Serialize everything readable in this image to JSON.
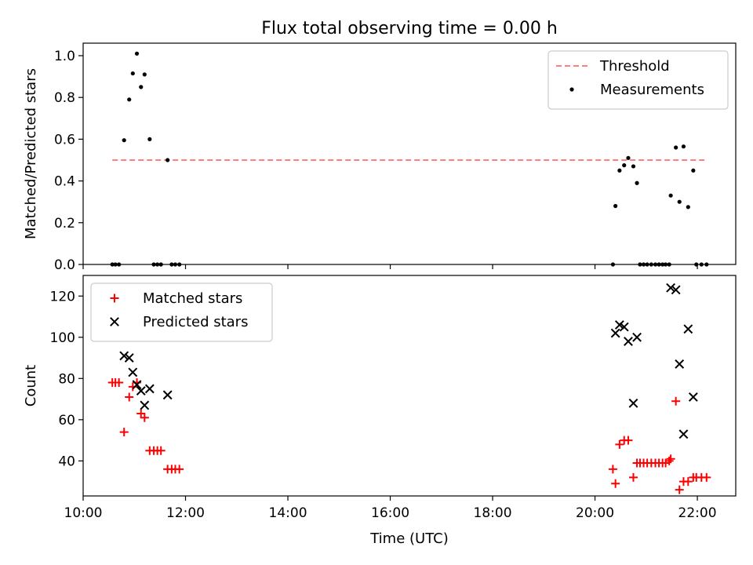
{
  "chart_data": {
    "title": "Flux total observing time = 0.00 h",
    "xlabel": "Time (UTC)",
    "x_unit": "hours UTC",
    "xlim": [
      10.0,
      22.75
    ],
    "xticks": [
      10,
      12,
      14,
      16,
      18,
      20,
      22
    ],
    "xtick_labels": [
      "10:00",
      "12:00",
      "14:00",
      "16:00",
      "18:00",
      "20:00",
      "22:00"
    ],
    "panels": [
      {
        "type": "scatter",
        "ylabel": "Matched/Predicted stars",
        "ylim": [
          0,
          1.06
        ],
        "yticks": [
          0.0,
          0.2,
          0.4,
          0.6,
          0.8,
          1.0
        ],
        "ytick_labels": [
          "0.0",
          "0.2",
          "0.4",
          "0.6",
          "0.8",
          "1.0"
        ],
        "legend_position": "upper right",
        "threshold": {
          "name": "Threshold",
          "y": 0.5,
          "x_range": [
            10.57,
            22.2
          ],
          "color": "#ff7f7f",
          "style": "dashed"
        },
        "series": [
          {
            "name": "Measurements",
            "marker": "dot",
            "color": "#000000",
            "points": [
              [
                10.57,
                0.0
              ],
              [
                10.63,
                0.0
              ],
              [
                10.7,
                0.0
              ],
              [
                10.8,
                0.595
              ],
              [
                10.9,
                0.79
              ],
              [
                10.97,
                0.915
              ],
              [
                11.05,
                1.01
              ],
              [
                11.13,
                0.85
              ],
              [
                11.2,
                0.91
              ],
              [
                11.3,
                0.6
              ],
              [
                11.38,
                0.0
              ],
              [
                11.45,
                0.0
              ],
              [
                11.52,
                0.0
              ],
              [
                11.65,
                0.5
              ],
              [
                11.73,
                0.0
              ],
              [
                11.8,
                0.0
              ],
              [
                11.88,
                0.0
              ],
              [
                20.35,
                0.0
              ],
              [
                20.4,
                0.28
              ],
              [
                20.48,
                0.45
              ],
              [
                20.57,
                0.475
              ],
              [
                20.65,
                0.51
              ],
              [
                20.75,
                0.47
              ],
              [
                20.82,
                0.39
              ],
              [
                20.88,
                0.0
              ],
              [
                20.95,
                0.0
              ],
              [
                21.02,
                0.0
              ],
              [
                21.1,
                0.0
              ],
              [
                21.18,
                0.0
              ],
              [
                21.25,
                0.0
              ],
              [
                21.32,
                0.0
              ],
              [
                21.38,
                0.0
              ],
              [
                21.45,
                0.0
              ],
              [
                21.48,
                0.33
              ],
              [
                21.58,
                0.56
              ],
              [
                21.65,
                0.3
              ],
              [
                21.73,
                0.565
              ],
              [
                21.82,
                0.275
              ],
              [
                21.92,
                0.45
              ],
              [
                21.98,
                0.0
              ],
              [
                22.08,
                0.0
              ],
              [
                22.18,
                0.0
              ]
            ]
          }
        ]
      },
      {
        "type": "scatter",
        "ylabel": "Count",
        "ylim": [
          23,
          130
        ],
        "yticks": [
          40,
          60,
          80,
          100,
          120
        ],
        "ytick_labels": [
          "40",
          "60",
          "80",
          "100",
          "120"
        ],
        "legend_position": "upper left",
        "series": [
          {
            "name": "Matched stars",
            "marker": "plus",
            "color": "#ff0000",
            "points": [
              [
                10.57,
                78
              ],
              [
                10.63,
                78
              ],
              [
                10.7,
                78
              ],
              [
                10.8,
                54
              ],
              [
                10.9,
                71
              ],
              [
                10.97,
                76
              ],
              [
                11.05,
                78
              ],
              [
                11.13,
                63
              ],
              [
                11.2,
                61
              ],
              [
                11.3,
                45
              ],
              [
                11.38,
                45
              ],
              [
                11.45,
                45
              ],
              [
                11.52,
                45
              ],
              [
                11.65,
                36
              ],
              [
                11.73,
                36
              ],
              [
                11.8,
                36
              ],
              [
                11.88,
                36
              ],
              [
                20.35,
                36
              ],
              [
                20.4,
                29
              ],
              [
                20.48,
                48
              ],
              [
                20.57,
                50
              ],
              [
                20.65,
                50
              ],
              [
                20.75,
                32
              ],
              [
                20.82,
                39
              ],
              [
                20.88,
                39
              ],
              [
                20.95,
                39
              ],
              [
                21.02,
                39
              ],
              [
                21.1,
                39
              ],
              [
                21.18,
                39
              ],
              [
                21.25,
                39
              ],
              [
                21.32,
                39
              ],
              [
                21.38,
                39
              ],
              [
                21.45,
                40
              ],
              [
                21.48,
                41
              ],
              [
                21.58,
                69
              ],
              [
                21.65,
                26
              ],
              [
                21.73,
                30
              ],
              [
                21.82,
                30
              ],
              [
                21.92,
                32
              ],
              [
                21.98,
                32
              ],
              [
                22.08,
                32
              ],
              [
                22.18,
                32
              ]
            ]
          },
          {
            "name": "Predicted stars",
            "marker": "x",
            "color": "#000000",
            "points": [
              [
                10.8,
                91
              ],
              [
                10.9,
                90
              ],
              [
                10.97,
                83
              ],
              [
                11.05,
                77
              ],
              [
                11.13,
                74
              ],
              [
                11.2,
                67
              ],
              [
                11.3,
                75
              ],
              [
                11.65,
                72
              ],
              [
                20.4,
                102
              ],
              [
                20.48,
                106
              ],
              [
                20.57,
                105
              ],
              [
                20.65,
                98
              ],
              [
                20.75,
                68
              ],
              [
                20.82,
                100
              ],
              [
                21.48,
                124
              ],
              [
                21.58,
                123
              ],
              [
                21.65,
                87
              ],
              [
                21.73,
                53
              ],
              [
                21.82,
                104
              ],
              [
                21.92,
                71
              ]
            ]
          }
        ]
      }
    ]
  }
}
